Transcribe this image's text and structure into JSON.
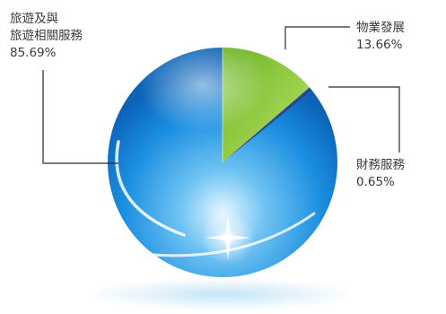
{
  "chart_data": {
    "type": "pie",
    "title": "",
    "series": [
      {
        "name": "旅遊及與旅遊相關服務",
        "label_lines": [
          "旅遊及與",
          "旅遊相關服務"
        ],
        "value_label": "85.69%",
        "value": 85.69
      },
      {
        "name": "物業發展",
        "label_lines": [
          "物業發展"
        ],
        "value_label": "13.66%",
        "value": 13.66
      },
      {
        "name": "財務服務",
        "label_lines": [
          "財務服務"
        ],
        "value_label": "0.65%",
        "value": 0.65
      }
    ],
    "colors": {
      "travel": "#1e8fd8",
      "property": "#8cc63f",
      "finance": "#1b4f9c",
      "leader": "#2b2b2b"
    },
    "style": "glossy-3d-sphere",
    "legend": "callout-labels"
  }
}
